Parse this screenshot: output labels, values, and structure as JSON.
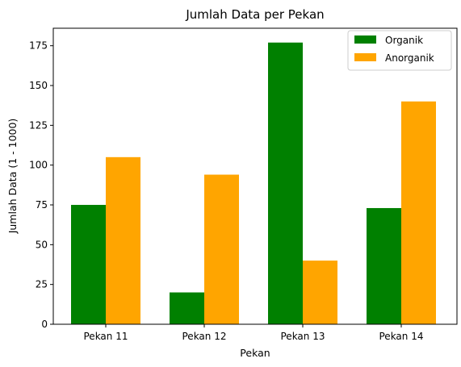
{
  "chart_data": {
    "type": "bar",
    "title": "Jumlah Data per Pekan",
    "xlabel": "Pekan",
    "ylabel": "Jumlah Data (1 - 1000)",
    "categories": [
      "Pekan 11",
      "Pekan 12",
      "Pekan 13",
      "Pekan 14"
    ],
    "series": [
      {
        "name": "Organik",
        "color": "#008000",
        "values": [
          75,
          20,
          177,
          73
        ]
      },
      {
        "name": "Anorganik",
        "color": "#ffa500",
        "values": [
          105,
          94,
          40,
          140
        ]
      }
    ],
    "ylim": [
      0,
      186
    ],
    "yticks": [
      0,
      25,
      50,
      75,
      100,
      125,
      150,
      175
    ],
    "grid": false,
    "legend_position": "top-right"
  }
}
